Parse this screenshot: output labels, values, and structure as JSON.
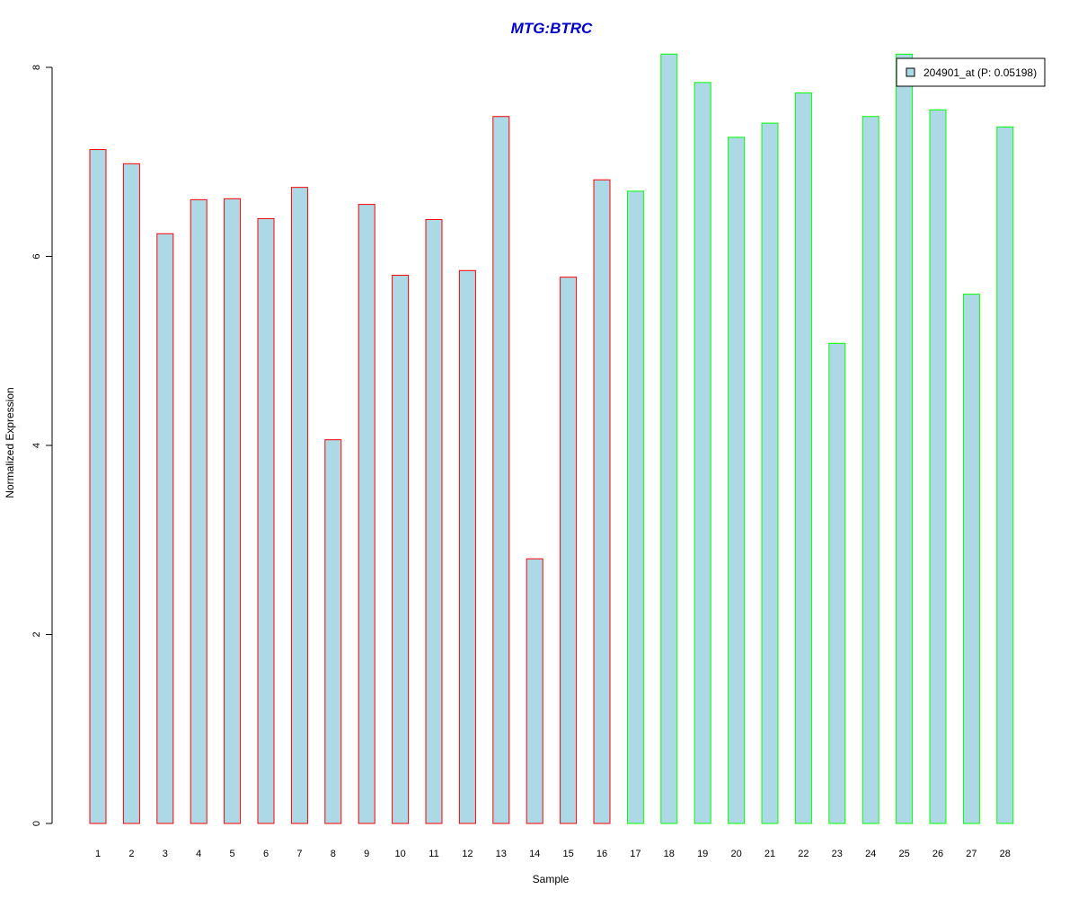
{
  "chart_data": {
    "type": "bar",
    "title": "MTG:BTRC",
    "xlabel": "Sample",
    "ylabel": "Normalized Expression",
    "categories": [
      "1",
      "2",
      "3",
      "4",
      "5",
      "6",
      "7",
      "8",
      "9",
      "10",
      "11",
      "12",
      "13",
      "14",
      "15",
      "16",
      "17",
      "18",
      "19",
      "20",
      "21",
      "22",
      "23",
      "24",
      "25",
      "26",
      "27",
      "28"
    ],
    "series": [
      {
        "name": "204901_at (P: 0.05198)",
        "values": [
          7.13,
          6.98,
          6.24,
          6.6,
          6.61,
          6.4,
          6.73,
          4.06,
          6.55,
          5.8,
          6.39,
          5.85,
          7.48,
          2.8,
          5.78,
          6.81,
          6.69,
          8.14,
          7.84,
          7.26,
          7.41,
          7.73,
          5.08,
          7.48,
          8.14,
          7.55,
          5.6,
          7.37
        ]
      }
    ],
    "groups": [
      1,
      1,
      1,
      1,
      1,
      1,
      1,
      1,
      1,
      1,
      1,
      1,
      1,
      1,
      1,
      1,
      2,
      2,
      2,
      2,
      2,
      2,
      2,
      2,
      2,
      2,
      2,
      2
    ],
    "ylim": [
      0,
      8
    ],
    "yticks": [
      "0",
      "2",
      "4",
      "6",
      "8"
    ],
    "grid": false,
    "legend_position": "top-right",
    "colors": {
      "title": "#0000cc",
      "bar_fill": "#add8e6",
      "group1_border": "#ff0000",
      "group2_border": "#00ff00",
      "axis": "#000000"
    }
  }
}
